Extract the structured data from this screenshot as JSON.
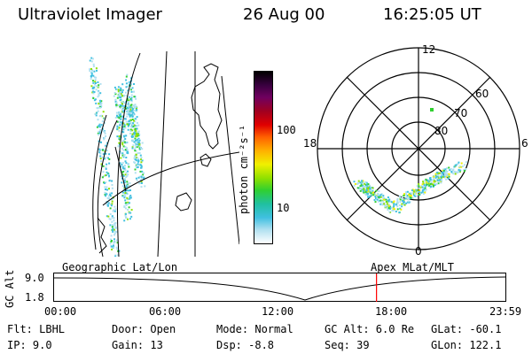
{
  "header": {
    "instrument": "Ultraviolet Imager",
    "date": "26 Aug 00",
    "time": "16:25:05 UT"
  },
  "colorbar": {
    "unit_label": "photon cm⁻²s⁻¹",
    "tick_high": "100",
    "tick_low": "10",
    "colors": [
      "#000000",
      "#3a0040",
      "#700060",
      "#a00020",
      "#e00000",
      "#ff6000",
      "#ffb000",
      "#f0f000",
      "#90e000",
      "#30d030",
      "#20c0a0",
      "#40c0e0",
      "#b0e0f0",
      "#ffffff"
    ]
  },
  "polar_plot": {
    "mlt_labels": {
      "top": "12",
      "left": "18",
      "right": "6",
      "bottom": "0"
    },
    "lat_labels": [
      "60",
      "70",
      "80"
    ]
  },
  "orbit": {
    "axis_label": "GC Alt",
    "alt_ticks": [
      "9.0",
      "1.8"
    ],
    "left_caption": "Geographic Lat/Lon",
    "right_caption": "Apex MLat/MLT",
    "time_ticks": [
      "00:00",
      "06:00",
      "12:00",
      "18:00",
      "23:59"
    ],
    "marker_fraction": 0.713,
    "marker_color": "#ff0000"
  },
  "info": {
    "filter": "Flt: LBHL",
    "ip": "IP:  9.0",
    "door": "Door: Open",
    "gain": "Gain: 13",
    "mode": "Mode: Normal",
    "dsp": "Dsp:    -8.8",
    "gc_alt": "GC Alt: 6.0 Re",
    "seq": "Seq: 39",
    "glat": "GLat: -60.1",
    "glon": "GLon: 122.1"
  }
}
